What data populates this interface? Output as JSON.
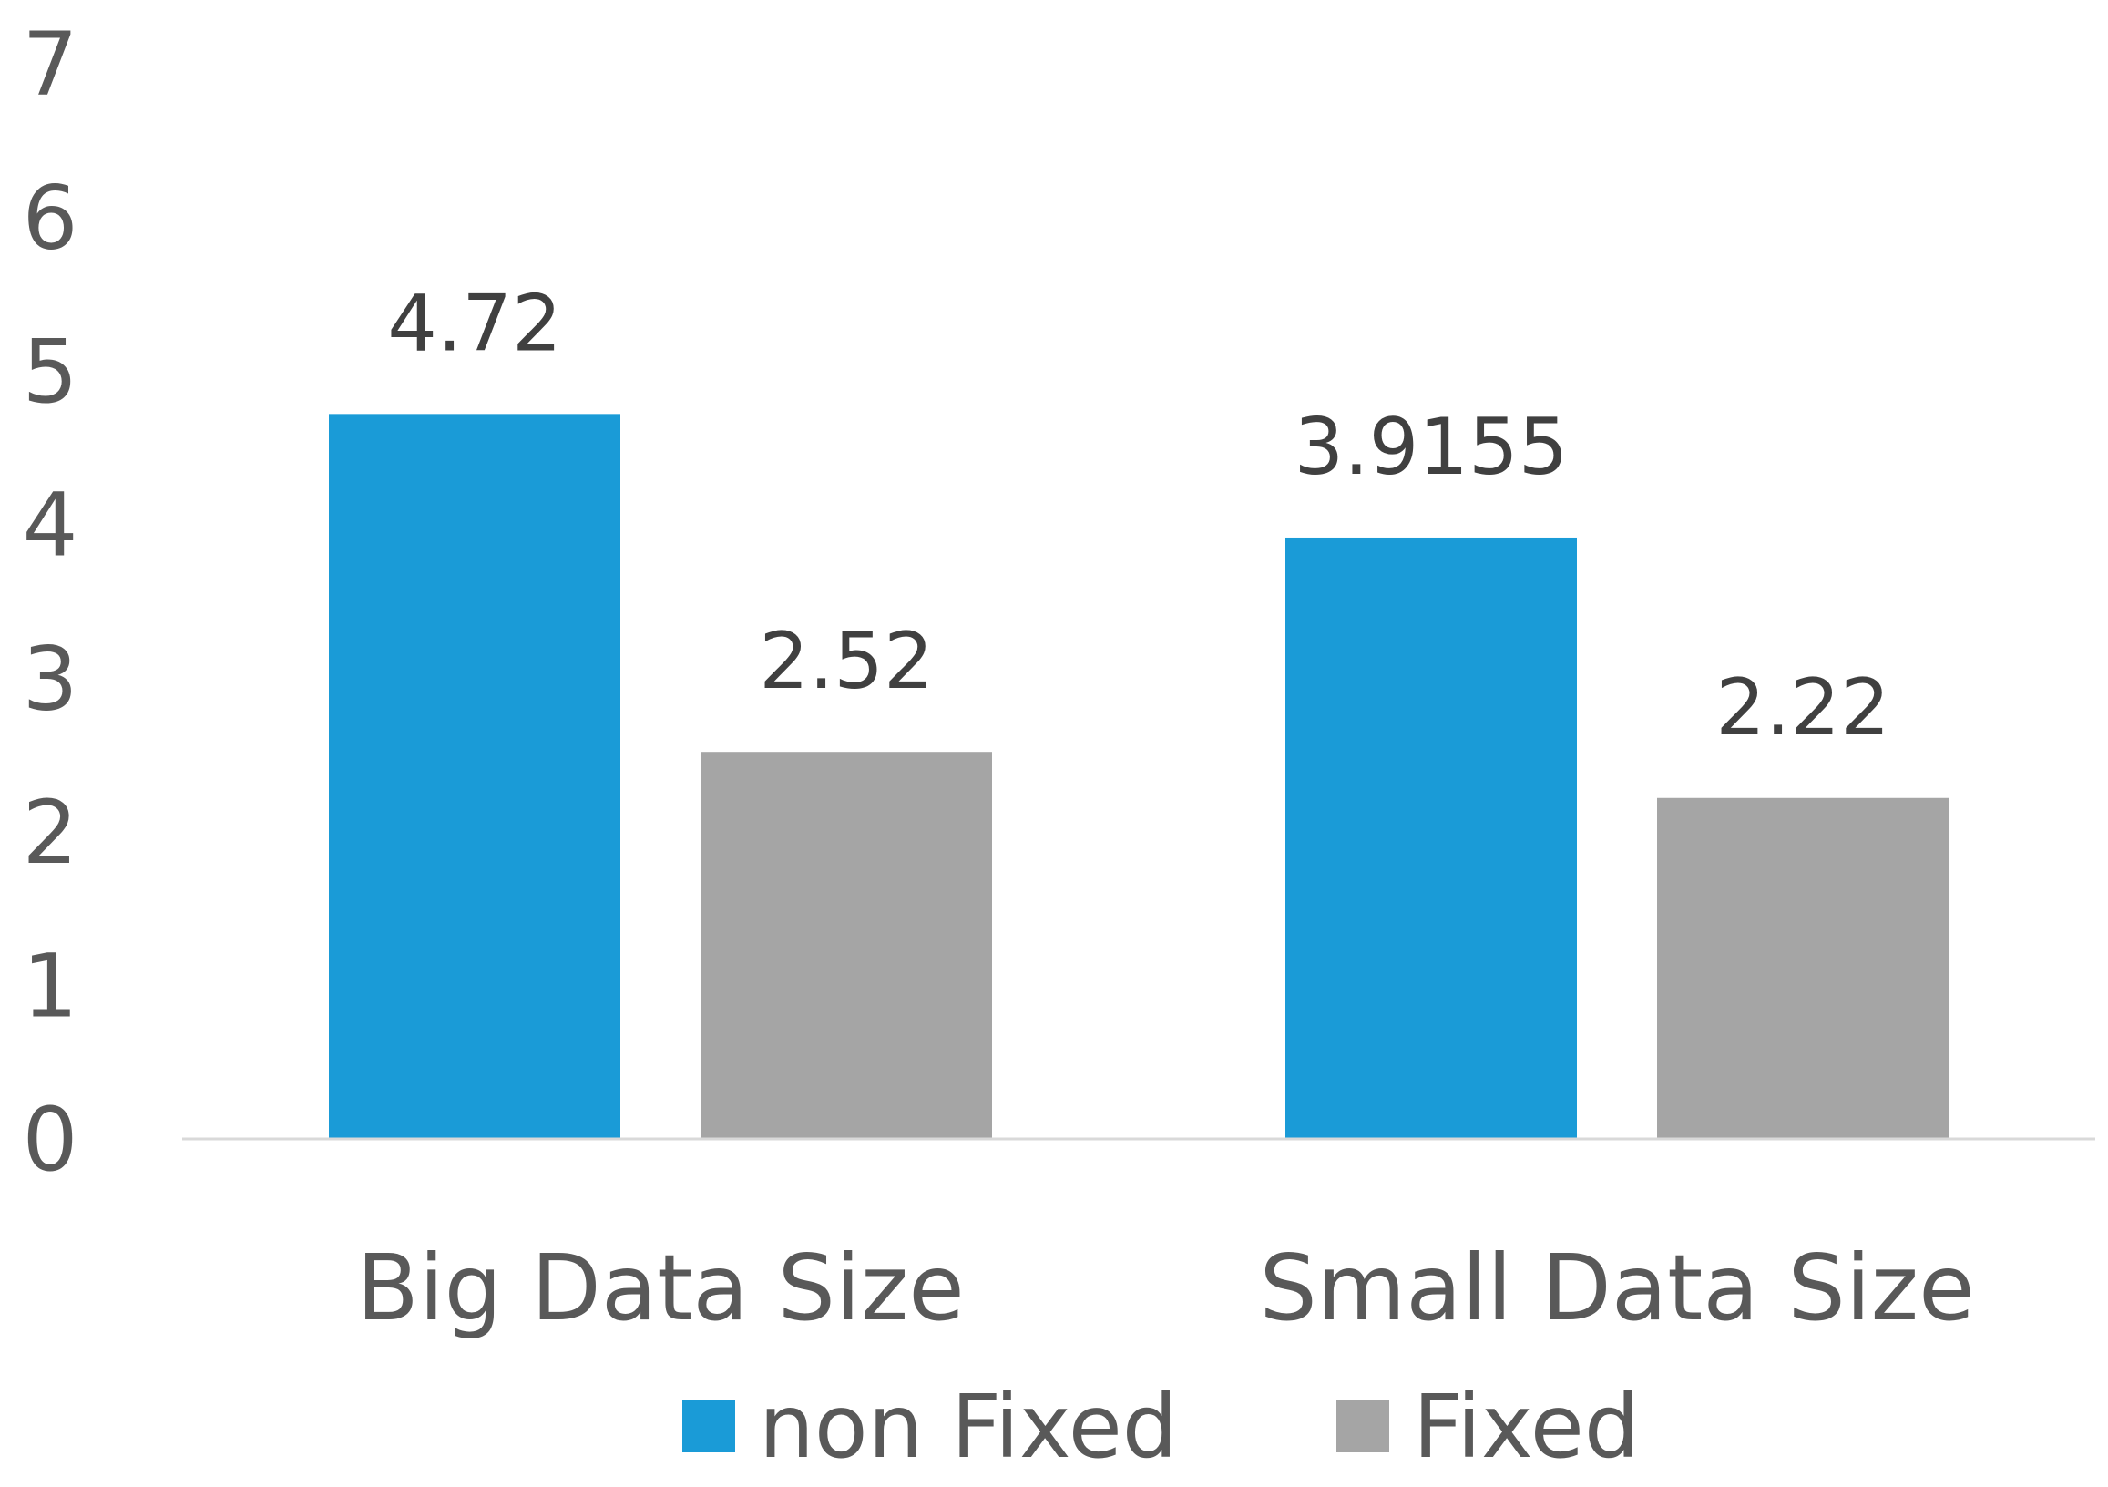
{
  "chart_data": {
    "type": "bar",
    "title": "",
    "xlabel": "",
    "ylabel": "",
    "categories": [
      "Big Data Size",
      "Small Data Size"
    ],
    "series": [
      {
        "name": "non Fixed",
        "values": [
          4.72,
          3.9155
        ],
        "labels": [
          "4.72",
          "3.9155"
        ],
        "color": "#1A9BD7"
      },
      {
        "name": "Fixed",
        "values": [
          2.52,
          2.22
        ],
        "labels": [
          "2.52",
          "2.22"
        ],
        "color": "#A5A5A5"
      }
    ],
    "ylim": [
      0,
      7
    ],
    "yticks": [
      "0",
      "1",
      "2",
      "3",
      "4",
      "5",
      "6",
      "7"
    ],
    "grid": false,
    "legend_position": "bottom",
    "axis_color": "#D9D9D9"
  }
}
